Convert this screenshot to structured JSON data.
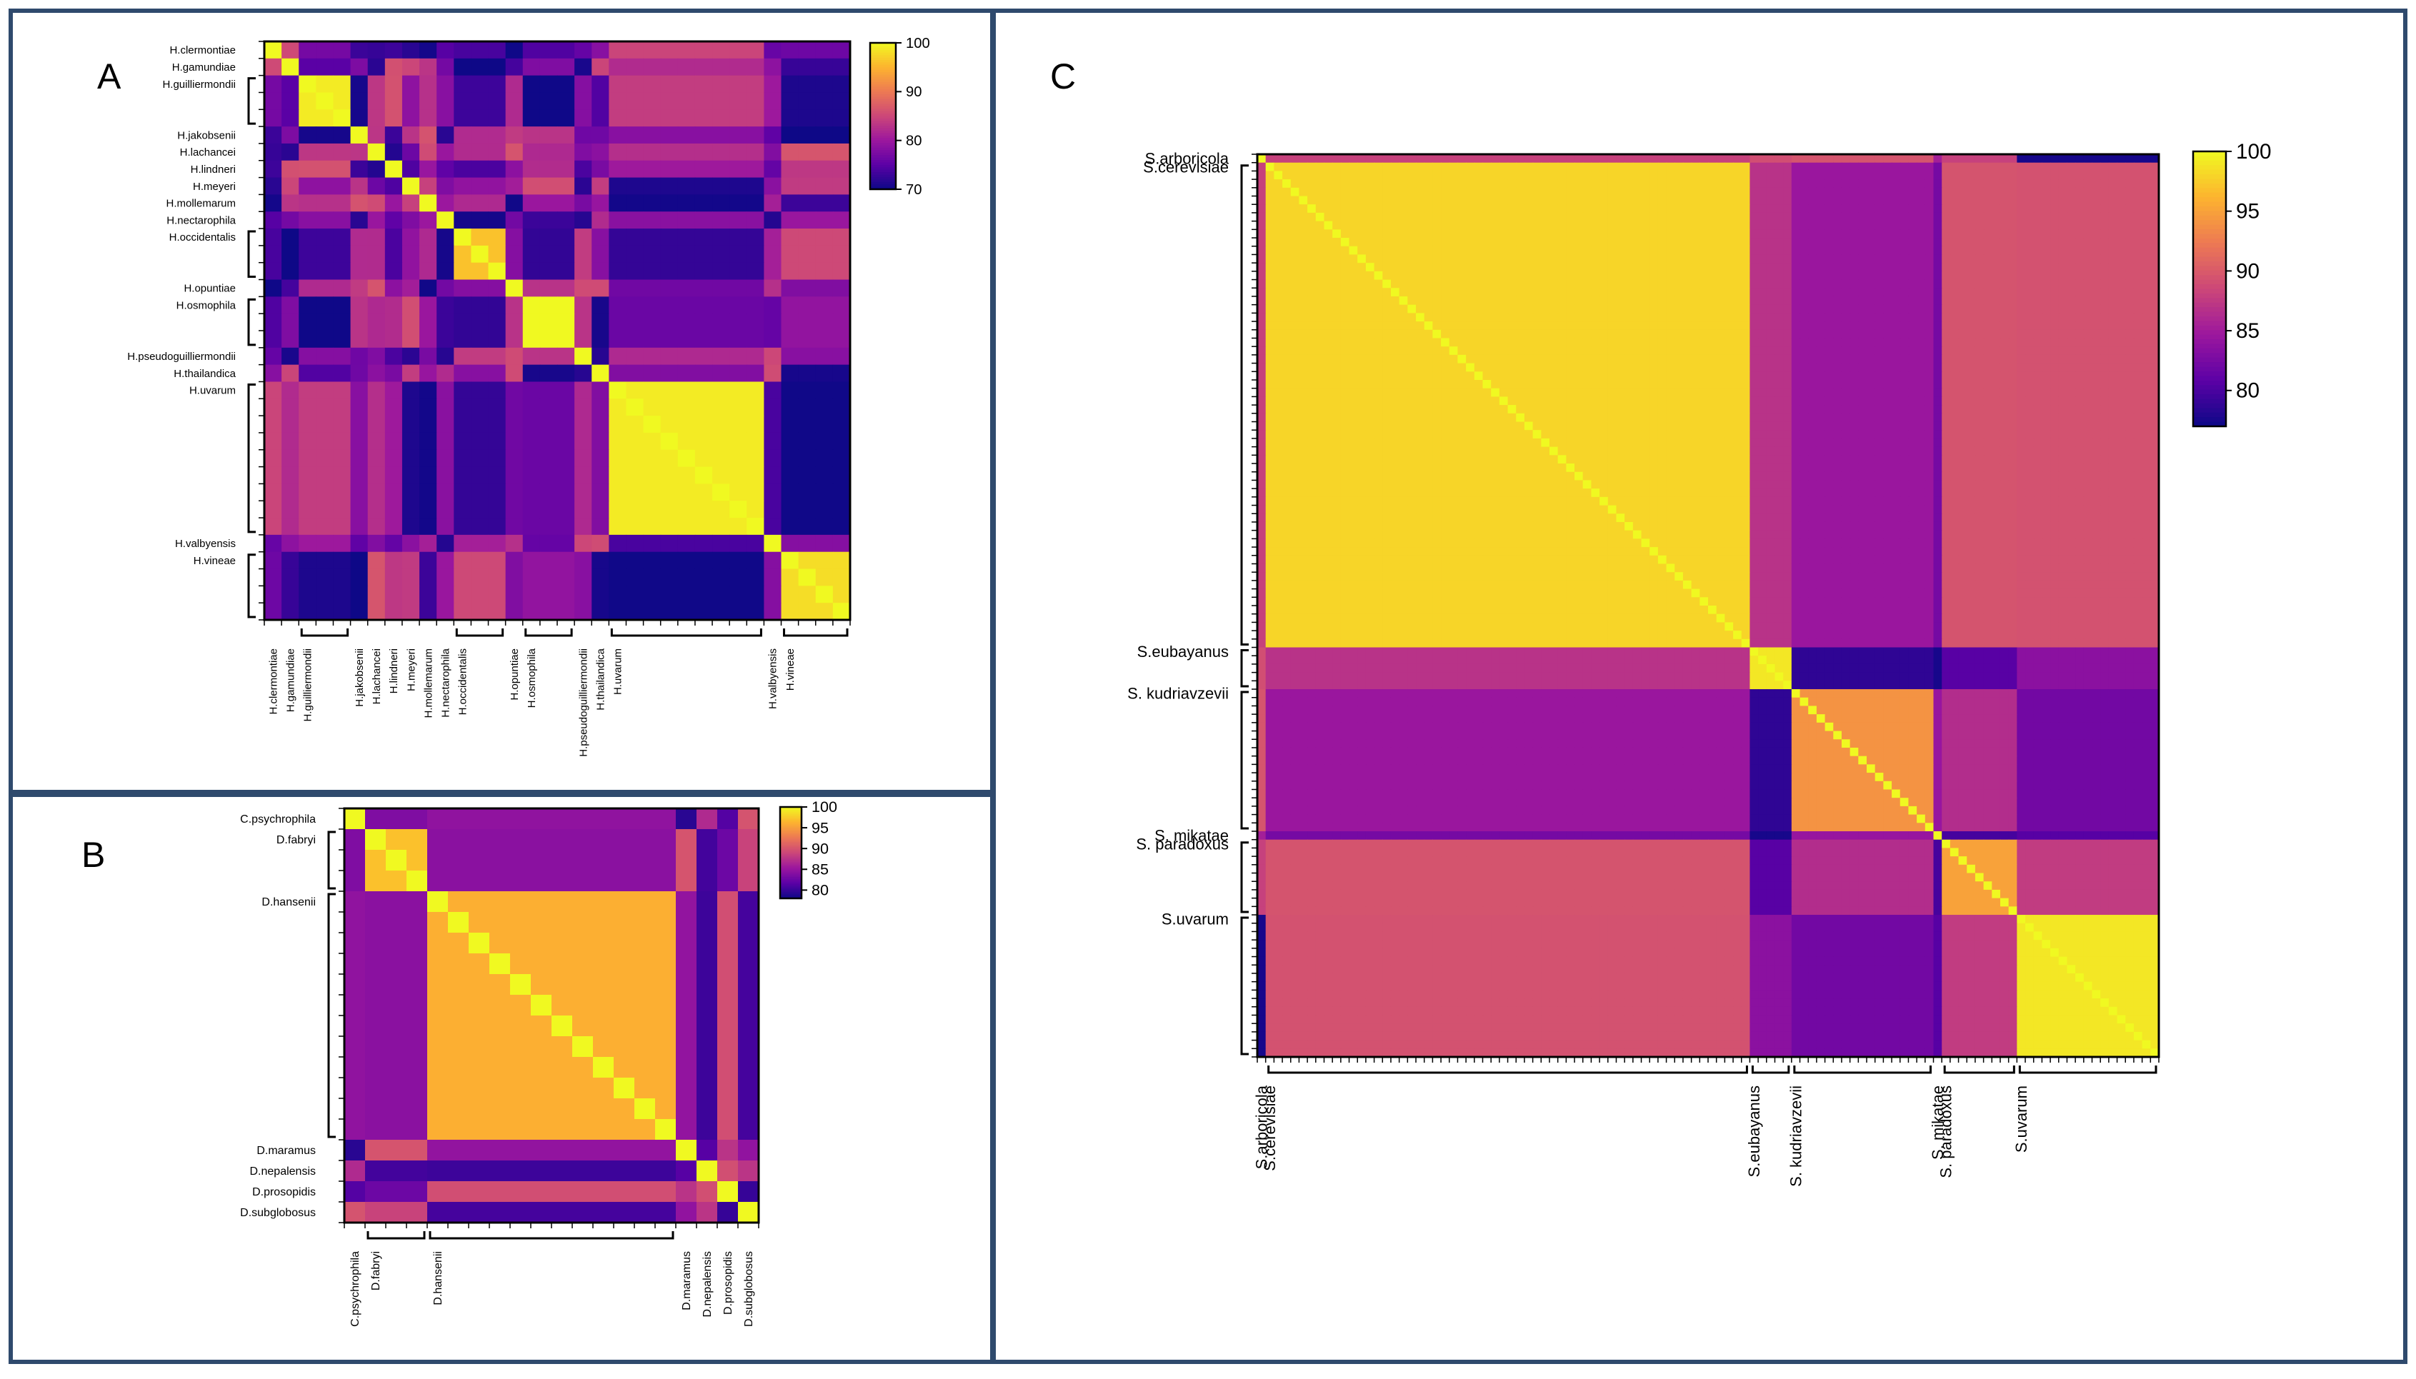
{
  "chart_data": [
    {
      "panel": "A",
      "type": "heatmap",
      "labels": [
        "H.clermontiae",
        "H.gamundiae",
        "H.guilliermondii",
        "H.jakobsenii",
        "H.lachancei",
        "H.lindneri",
        "H.meyeri",
        "H.mollemarum",
        "H.nectarophila",
        "H.occidentalis",
        "H.opuntiae",
        "H.osmophila",
        "H.pseudoguilliermondii",
        "H.thailandica",
        "H.uvarum",
        "H.valbyensis",
        "H.vineae"
      ],
      "group_sizes": [
        1,
        1,
        3,
        1,
        1,
        1,
        1,
        1,
        1,
        3,
        1,
        3,
        1,
        1,
        9,
        1,
        4
      ],
      "diag_values": [
        100,
        100,
        99,
        100,
        100,
        100,
        100,
        100,
        100,
        96,
        100,
        100,
        100,
        100,
        99,
        100,
        98
      ],
      "colorbar": {
        "ticks": [
          100,
          90,
          80,
          70
        ],
        "range": [
          70,
          100
        ]
      }
    },
    {
      "panel": "B",
      "type": "heatmap",
      "labels": [
        "C.psychrophila",
        "D.fabryi",
        "D.hansenii",
        "D.maramus",
        "D.nepalensis",
        "D.prosopidis",
        "D.subglobosus"
      ],
      "group_sizes": [
        1,
        3,
        12,
        1,
        1,
        1,
        1
      ],
      "diag_values": [
        100,
        97,
        96,
        100,
        100,
        100,
        100
      ],
      "colorbar": {
        "ticks": [
          100,
          95,
          90,
          85,
          80
        ],
        "range": [
          78,
          100
        ]
      }
    },
    {
      "panel": "C",
      "type": "heatmap",
      "labels": [
        "S.arboricola",
        "S.cerevisiae",
        "S.eubayanus",
        "S. kudriavzevii",
        "S. mikatae",
        "S. paradoxus",
        "S.uvarum"
      ],
      "group_sizes": [
        1,
        58,
        5,
        17,
        1,
        9,
        17
      ],
      "diag_values": [
        100,
        98,
        99,
        94,
        100,
        95,
        99
      ],
      "colorbar": {
        "ticks": [
          100,
          95,
          90,
          85,
          80
        ],
        "range": [
          77,
          100
        ]
      }
    }
  ],
  "palette": [
    "#0d0887",
    "#5c01a6",
    "#9c179e",
    "#cc4778",
    "#ed7953",
    "#fdb42f",
    "#f0f921"
  ],
  "panels": {
    "a_letter": "A",
    "b_letter": "B",
    "c_letter": "C"
  }
}
